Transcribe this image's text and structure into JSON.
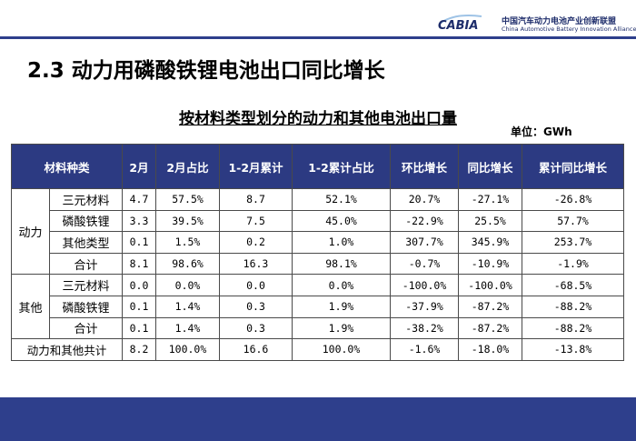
{
  "header": {
    "logo_cn": "中国汽车动力电池产业创新联盟",
    "logo_en": "China Automotive Battery Innovation Alliance",
    "logo_mark": "CABIA"
  },
  "slide_title": "2.3 动力用磷酸铁锂电池出口同比增长",
  "table_title": "按材料类型划分的动力和其他电池出口量",
  "unit": "单位：GWh",
  "table": {
    "headers": [
      "材料种类",
      "2月",
      "2月占比",
      "1-2月累计",
      "1-2累计占比",
      "环比增长",
      "同比增长",
      "累计同比增长"
    ],
    "groups": [
      {
        "name": "动力",
        "rows": [
          {
            "type": "三元材料",
            "values": [
              "4.7",
              "57.5%",
              "8.7",
              "52.1%",
              "20.7%",
              "-27.1%",
              "-26.8%"
            ]
          },
          {
            "type": "磷酸铁锂",
            "values": [
              "3.3",
              "39.5%",
              "7.5",
              "45.0%",
              "-22.9%",
              "25.5%",
              "57.7%"
            ]
          },
          {
            "type": "其他类型",
            "values": [
              "0.1",
              "1.5%",
              "0.2",
              "1.0%",
              "307.7%",
              "345.9%",
              "253.7%"
            ]
          },
          {
            "type": "合计",
            "values": [
              "8.1",
              "98.6%",
              "16.3",
              "98.1%",
              "-0.7%",
              "-10.9%",
              "-1.9%"
            ]
          }
        ]
      },
      {
        "name": "其他",
        "rows": [
          {
            "type": "三元材料",
            "values": [
              "0.0",
              "0.0%",
              "0.0",
              "0.0%",
              "-100.0%",
              "-100.0%",
              "-68.5%"
            ]
          },
          {
            "type": "磷酸铁锂",
            "values": [
              "0.1",
              "1.4%",
              "0.3",
              "1.9%",
              "-37.9%",
              "-87.2%",
              "-88.2%"
            ]
          },
          {
            "type": "合计",
            "values": [
              "0.1",
              "1.4%",
              "0.3",
              "1.9%",
              "-38.2%",
              "-87.2%",
              "-88.2%"
            ]
          }
        ]
      }
    ],
    "grand_total": {
      "label": "动力和其他共计",
      "values": [
        "8.2",
        "100.0%",
        "16.6",
        "100.0%",
        "-1.6%",
        "-18.0%",
        "-13.8%"
      ]
    }
  }
}
